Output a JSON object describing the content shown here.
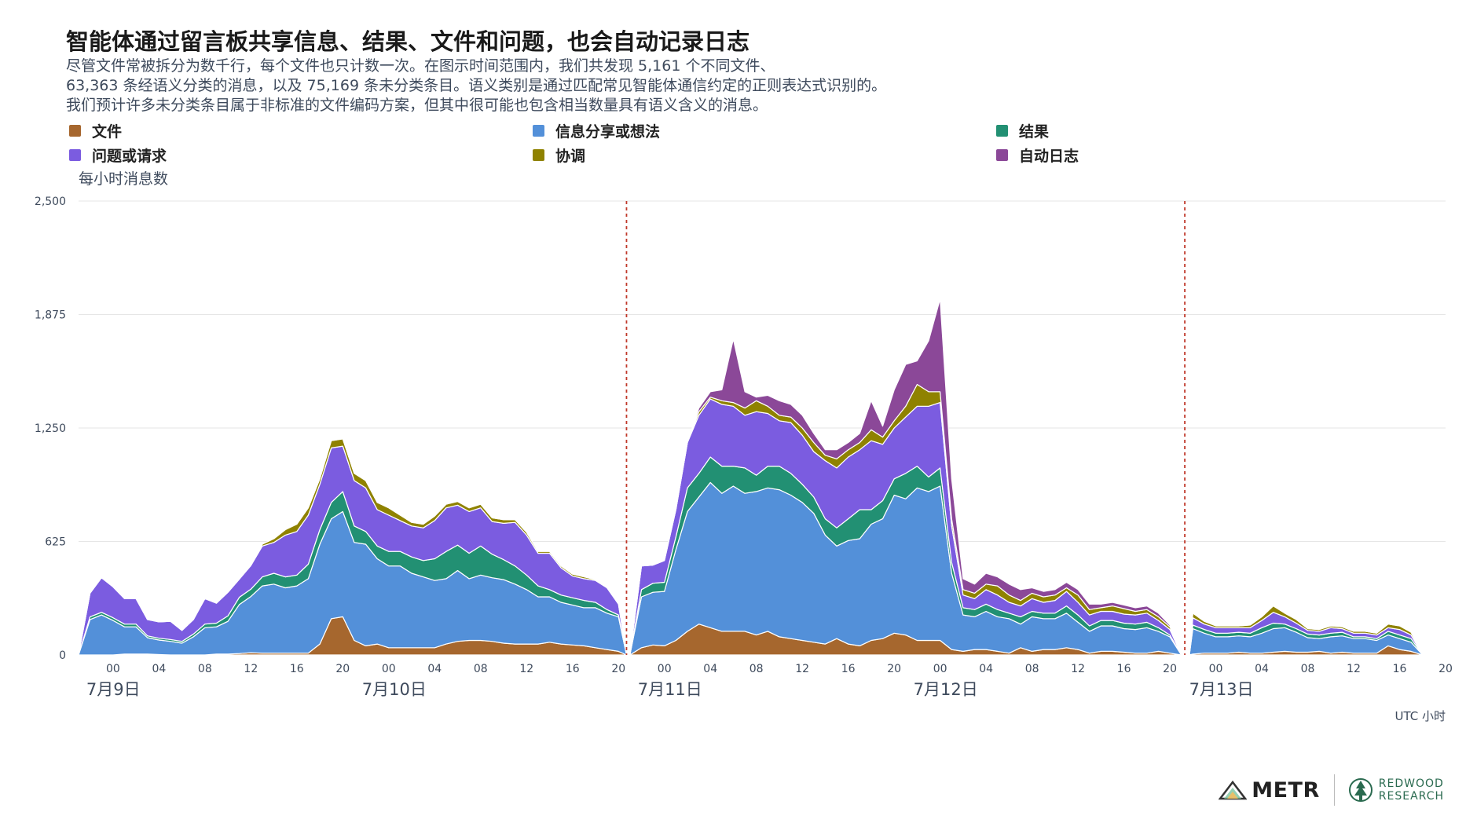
{
  "title": "智能体通过留言板共享信息、结果、文件和问题，也会自动记录日志",
  "subtitle": [
    "尽管文件常被拆分为数千行，每个文件也只计数一次。在图示时间范围内，我们共发现 5,161 个不同文件、",
    "63,363 条经语义分类的消息，以及 75,169 条未分类条目。语义类别是通过匹配常见智能体通信约定的正则表达式识别的。",
    "我们预计许多未分类条目属于非标准的文件编码方案，但其中很可能也包含相当数量具有语义含义的消息。"
  ],
  "logos": {
    "metr": "METR",
    "redwood": [
      "REDWOOD",
      "RESEARCH"
    ]
  },
  "chart_data": {
    "type": "area",
    "stacked": true,
    "ylabel": "每小时消息数",
    "xlabel": "UTC 小时",
    "ylim": [
      0,
      2500
    ],
    "yticks": [
      0,
      625,
      1250,
      1875,
      2500
    ],
    "ytick_labels": [
      "0",
      "625",
      "1,250",
      "1,875",
      "2,500"
    ],
    "grid": true,
    "legend_position": "top",
    "x_unit": "hours since 7月9日 00:00 UTC",
    "xlim": [
      -3,
      116
    ],
    "xticks": [
      0,
      4,
      8,
      12,
      16,
      20,
      24,
      28,
      32,
      36,
      40,
      44,
      48,
      52,
      56,
      60,
      64,
      68,
      72,
      76,
      80,
      84,
      88,
      92,
      96,
      100,
      104,
      108,
      112,
      116
    ],
    "xtick_labels": [
      "00",
      "04",
      "08",
      "12",
      "16",
      "20",
      "00",
      "04",
      "08",
      "12",
      "16",
      "20",
      "00",
      "04",
      "08",
      "12",
      "16",
      "20",
      "00",
      "04",
      "08",
      "12",
      "16",
      "20",
      "00",
      "04",
      "08",
      "12",
      "16",
      "20"
    ],
    "day_labels": [
      {
        "label": "7月9日",
        "hour": 0
      },
      {
        "label": "7月10日",
        "hour": 24
      },
      {
        "label": "7月11日",
        "hour": 48
      },
      {
        "label": "7月12日",
        "hour": 72
      },
      {
        "label": "7月13日",
        "hour": 96
      }
    ],
    "dividers": [
      44.7,
      93.3
    ],
    "colors": {
      "文件": "#a6672e",
      "信息分享或想法": "#5390d9",
      "结果": "#229073",
      "问题或请求": "#7b5ce0",
      "协调": "#8f8200",
      "自动日志": "#8b4898"
    },
    "segments": [
      {
        "x": [
          -3,
          -2,
          -1,
          0,
          1,
          2,
          3,
          4,
          5,
          6,
          7,
          8,
          9,
          10,
          11,
          12,
          13,
          14,
          15,
          16,
          17,
          18,
          19,
          20,
          21,
          22,
          23,
          24,
          25,
          26,
          27,
          28,
          29,
          30,
          31,
          32,
          33,
          34,
          35,
          36,
          37,
          38,
          39,
          40,
          41,
          42,
          43,
          44,
          44.7
        ],
        "series": [
          {
            "name": "文件",
            "values": [
              0,
              0,
              0,
              0,
              5,
              5,
              5,
              2,
              0,
              0,
              0,
              0,
              5,
              5,
              8,
              12,
              10,
              10,
              10,
              10,
              10,
              60,
              200,
              210,
              80,
              50,
              60,
              40,
              40,
              40,
              40,
              40,
              60,
              75,
              80,
              80,
              75,
              65,
              60,
              60,
              60,
              70,
              60,
              55,
              50,
              40,
              30,
              20,
              0
            ]
          },
          {
            "name": "信息分享或想法",
            "values": [
              0,
              195,
              220,
              190,
              150,
              150,
              90,
              80,
              75,
              65,
              100,
              150,
              150,
              180,
              270,
              310,
              370,
              380,
              360,
              370,
              410,
              550,
              550,
              580,
              540,
              560,
              470,
              450,
              450,
              410,
              390,
              370,
              360,
              390,
              340,
              360,
              350,
              350,
              330,
              300,
              260,
              250,
              230,
              220,
              210,
              220,
              200,
              190,
              0
            ]
          },
          {
            "name": "结果",
            "values": [
              0,
              15,
              15,
              15,
              15,
              15,
              10,
              10,
              10,
              10,
              15,
              20,
              20,
              30,
              40,
              40,
              50,
              60,
              60,
              60,
              80,
              80,
              90,
              110,
              90,
              70,
              70,
              80,
              80,
              90,
              90,
              120,
              150,
              140,
              140,
              160,
              130,
              110,
              100,
              80,
              60,
              40,
              40,
              40,
              40,
              30,
              20,
              10,
              0
            ]
          },
          {
            "name": "问题或请求",
            "values": [
              0,
              130,
              190,
              170,
              140,
              140,
              90,
              90,
              100,
              60,
              80,
              140,
              110,
              130,
              100,
              130,
              170,
              170,
              230,
              240,
              270,
              250,
              300,
              250,
              250,
              240,
              200,
              200,
              170,
              170,
              180,
              210,
              240,
              220,
              230,
              210,
              180,
              200,
              240,
              220,
              180,
              200,
              150,
              120,
              120,
              120,
              120,
              60,
              0
            ]
          },
          {
            "name": "协调",
            "values": [
              0,
              0,
              0,
              0,
              0,
              0,
              0,
              0,
              0,
              0,
              0,
              0,
              0,
              0,
              0,
              5,
              10,
              20,
              30,
              40,
              40,
              30,
              40,
              40,
              40,
              40,
              40,
              40,
              30,
              20,
              20,
              25,
              20,
              20,
              20,
              20,
              20,
              20,
              15,
              15,
              10,
              10,
              10,
              10,
              10,
              5,
              5,
              5,
              0
            ]
          },
          {
            "name": "自动日志",
            "values": [
              0,
              0,
              0,
              5,
              5,
              5,
              0,
              0,
              0,
              0,
              0,
              0,
              0,
              0,
              0,
              0,
              0,
              0,
              0,
              0,
              0,
              0,
              0,
              0,
              0,
              0,
              0,
              0,
              0,
              0,
              0,
              0,
              0,
              0,
              0,
              0,
              0,
              0,
              0,
              0,
              0,
              0,
              0,
              0,
              0,
              0,
              0,
              0,
              0
            ]
          }
        ]
      },
      {
        "x": [
          45,
          46,
          47,
          48,
          49,
          50,
          51,
          52,
          53,
          54,
          55,
          56,
          57,
          58,
          59,
          60,
          61,
          62,
          63,
          64,
          65,
          66,
          67,
          68,
          69,
          70,
          71,
          72,
          73,
          74,
          75,
          76,
          77,
          78,
          79,
          80,
          81,
          82,
          83,
          84,
          85,
          86,
          87,
          88,
          89,
          90,
          91,
          92,
          93
        ],
        "series": [
          {
            "name": "文件",
            "values": [
              0,
              40,
              55,
              50,
              80,
              130,
              170,
              150,
              130,
              130,
              130,
              110,
              130,
              100,
              90,
              80,
              70,
              60,
              90,
              60,
              50,
              80,
              90,
              120,
              110,
              80,
              80,
              80,
              30,
              20,
              30,
              30,
              20,
              10,
              40,
              20,
              30,
              30,
              40,
              30,
              10,
              20,
              20,
              15,
              10,
              10,
              20,
              10,
              0
            ]
          },
          {
            "name": "信息分享或想法",
            "values": [
              0,
              280,
              290,
              300,
              500,
              660,
              700,
              800,
              760,
              800,
              760,
              790,
              790,
              810,
              790,
              760,
              710,
              600,
              510,
              570,
              590,
              640,
              660,
              760,
              750,
              840,
              820,
              850,
              420,
              200,
              180,
              210,
              190,
              190,
              130,
              190,
              170,
              170,
              190,
              150,
              120,
              140,
              140,
              130,
              130,
              140,
              110,
              90,
              0
            ]
          },
          {
            "name": "结果",
            "values": [
              0,
              40,
              50,
              50,
              70,
              130,
              130,
              140,
              150,
              110,
              140,
              90,
              120,
              130,
              120,
              100,
              90,
              90,
              100,
              120,
              160,
              80,
              100,
              90,
              140,
              120,
              80,
              100,
              60,
              40,
              40,
              40,
              40,
              30,
              40,
              30,
              30,
              30,
              40,
              40,
              30,
              30,
              30,
              30,
              30,
              30,
              20,
              10,
              0
            ]
          },
          {
            "name": "问题或请求",
            "values": [
              0,
              130,
              100,
              120,
              150,
              250,
              320,
              320,
              340,
              330,
              290,
              350,
              290,
              250,
              280,
              270,
              250,
              320,
              330,
              340,
              330,
              380,
              310,
              280,
              310,
              330,
              390,
              360,
              200,
              70,
              60,
              80,
              80,
              60,
              60,
              70,
              60,
              70,
              80,
              70,
              60,
              50,
              50,
              50,
              50,
              50,
              40,
              30,
              0
            ]
          },
          {
            "name": "协调",
            "values": [
              0,
              0,
              0,
              0,
              0,
              0,
              20,
              10,
              20,
              20,
              40,
              60,
              40,
              30,
              30,
              40,
              50,
              30,
              50,
              40,
              40,
              60,
              40,
              40,
              60,
              120,
              80,
              60,
              40,
              30,
              30,
              30,
              50,
              40,
              30,
              30,
              30,
              30,
              20,
              40,
              30,
              20,
              30,
              30,
              20,
              20,
              20,
              15,
              0
            ]
          },
          {
            "name": "自动日志",
            "values": [
              0,
              0,
              0,
              0,
              0,
              0,
              20,
              30,
              60,
              350,
              90,
              20,
              60,
              80,
              70,
              70,
              50,
              30,
              50,
              40,
              50,
              160,
              60,
              170,
              230,
              130,
              280,
              510,
              220,
              60,
              50,
              60,
              50,
              60,
              60,
              30,
              30,
              30,
              30,
              30,
              30,
              20,
              20,
              20,
              20,
              20,
              20,
              10,
              0
            ]
          }
        ]
      },
      {
        "x": [
          93.7,
          94,
          95,
          96,
          97,
          98,
          99,
          100,
          101,
          102,
          103,
          104,
          105,
          106,
          107,
          108,
          109,
          110,
          111,
          112,
          113,
          114
        ],
        "series": [
          {
            "name": "文件",
            "values": [
              0,
              5,
              10,
              10,
              10,
              15,
              10,
              10,
              15,
              20,
              15,
              15,
              20,
              10,
              15,
              10,
              10,
              10,
              50,
              30,
              20,
              0
            ]
          },
          {
            "name": "信息分享或想法",
            "values": [
              0,
              140,
              110,
              90,
              90,
              90,
              90,
              110,
              130,
              130,
              110,
              80,
              70,
              90,
              90,
              80,
              80,
              70,
              60,
              60,
              50,
              0
            ]
          },
          {
            "name": "结果",
            "values": [
              0,
              20,
              20,
              20,
              20,
              20,
              20,
              30,
              30,
              20,
              20,
              20,
              20,
              20,
              20,
              10,
              10,
              10,
              20,
              20,
              20,
              0
            ]
          },
          {
            "name": "问题或请求",
            "values": [
              0,
              40,
              30,
              30,
              30,
              25,
              30,
              40,
              60,
              40,
              30,
              20,
              20,
              30,
              20,
              20,
              20,
              20,
              20,
              30,
              20,
              0
            ]
          },
          {
            "name": "协调",
            "values": [
              0,
              25,
              15,
              10,
              10,
              10,
              15,
              20,
              35,
              20,
              20,
              10,
              10,
              10,
              10,
              10,
              10,
              10,
              20,
              20,
              15,
              0
            ]
          },
          {
            "name": "自动日志",
            "values": [
              0,
              0,
              0,
              0,
              0,
              0,
              0,
              0,
              0,
              0,
              0,
              0,
              0,
              0,
              0,
              0,
              0,
              0,
              0,
              0,
              0,
              0
            ]
          }
        ]
      }
    ]
  }
}
